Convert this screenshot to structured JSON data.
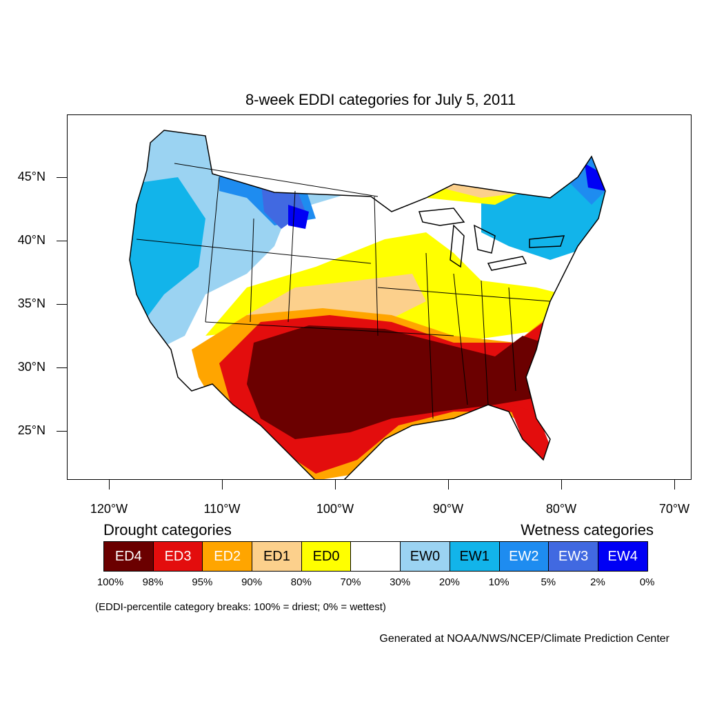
{
  "title": "8-week EDDI categories for July 5, 2011",
  "y_axis": {
    "ticks": [
      {
        "value": 45,
        "label": "45°N"
      },
      {
        "value": 40,
        "label": "40°N"
      },
      {
        "value": 35,
        "label": "35°N"
      },
      {
        "value": 30,
        "label": "30°N"
      },
      {
        "value": 25,
        "label": "25°N"
      }
    ]
  },
  "x_axis": {
    "ticks": [
      {
        "value": -120,
        "label": "120°W"
      },
      {
        "value": -110,
        "label": "110°W"
      },
      {
        "value": -100,
        "label": "100°W"
      },
      {
        "value": -90,
        "label": "90°W"
      },
      {
        "value": -80,
        "label": "80°W"
      },
      {
        "value": -70,
        "label": "70°W"
      }
    ]
  },
  "legend": {
    "drought_heading": "Drought categories",
    "wetness_heading": "Wetness categories",
    "categories": [
      {
        "label": "ED4",
        "color": "#6b0000",
        "text_color": "#ffffff"
      },
      {
        "label": "ED3",
        "color": "#e30d0d",
        "text_color": "#ffffff"
      },
      {
        "label": "ED2",
        "color": "#ffa500",
        "text_color": "#ffffff"
      },
      {
        "label": "ED1",
        "color": "#fcd08c",
        "text_color": "#000000"
      },
      {
        "label": "ED0",
        "color": "#ffff00",
        "text_color": "#000000"
      },
      {
        "label": "",
        "color": "#ffffff",
        "text_color": "#000000"
      },
      {
        "label": "EW0",
        "color": "#9bd3f2",
        "text_color": "#000000"
      },
      {
        "label": "EW1",
        "color": "#12b4ea",
        "text_color": "#000000"
      },
      {
        "label": "EW2",
        "color": "#1e8cf0",
        "text_color": "#ffffff"
      },
      {
        "label": "EW3",
        "color": "#4169e1",
        "text_color": "#ffffff"
      },
      {
        "label": "EW4",
        "color": "#0000f5",
        "text_color": "#ffffff"
      }
    ],
    "breaks": [
      "100%",
      "98%",
      "95%",
      "90%",
      "80%",
      "70%",
      "30%",
      "20%",
      "10%",
      "5%",
      "2%",
      "0%"
    ],
    "note": "(EDDI-percentile category breaks: 100% = driest; 0% = wettest)"
  },
  "credit": "Generated at NOAA/NWS/NCEP/Climate Prediction Center"
}
